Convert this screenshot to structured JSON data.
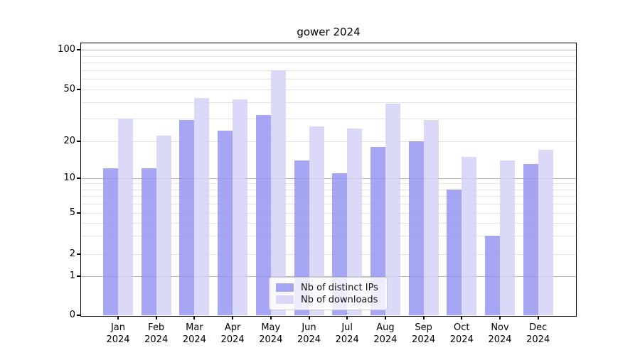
{
  "chart_data": {
    "type": "bar",
    "title": "gower 2024",
    "categories": [
      "Jan",
      "Feb",
      "Mar",
      "Apr",
      "May",
      "Jun",
      "Jul",
      "Aug",
      "Sep",
      "Oct",
      "Nov",
      "Dec"
    ],
    "x_tick_second_line": "2024",
    "series": [
      {
        "name": "Nb of distinct IPs",
        "color": "#a6a6f4",
        "values": [
          12,
          12,
          29,
          24,
          32,
          14,
          11,
          18,
          20,
          8,
          3,
          13
        ]
      },
      {
        "name": "Nb of downloads",
        "color": "#dadaf8",
        "values": [
          30,
          22,
          43,
          42,
          70,
          26,
          25,
          39,
          29,
          15,
          14,
          17
        ]
      }
    ],
    "xlabel": "",
    "ylabel": "",
    "yticks": [
      0,
      1,
      2,
      5,
      10,
      20,
      50,
      100
    ],
    "ylim": [
      0,
      115
    ],
    "yscale": "log-like (asinh), zero shown at baseline",
    "grid": {
      "horizontal": "major and minor log lines",
      "vertical": "none"
    },
    "legend_position": "lower center, inset box inside plot"
  }
}
